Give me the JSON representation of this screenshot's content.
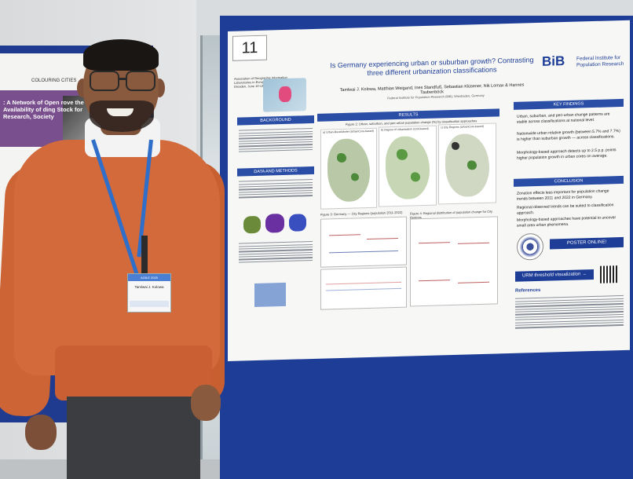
{
  "left_poster": {
    "logo_text": "COLOURING CITIES",
    "title_text": ": A Network of Open rove the Availability of ding Stock for Research, Society"
  },
  "poster": {
    "number": "11",
    "title": "Is Germany experiencing urban or suburban growth? Contrasting three different urbanization classifications",
    "authors": "Tamlwai J. Kolowa, Matthias Weigand, Ines Standfuß, Sebastian Klüsener, Nik Lomax & Hannes Taubenböck",
    "affiliation": "Federal Institute for Population Research (BiB), Wiesbaden, Germany",
    "conference": "Association of Geographic Information Laboratories in Europe (AGILE) Conference 2025, Dresden, June 10-13",
    "logo": {
      "mark": "BiB",
      "name": "Federal Institute for Population Research"
    },
    "sections": {
      "background": "BACKGROUND",
      "data_methods": "DATA AND METHODS",
      "results": "RESULTS",
      "key_findings": "KEY FINDINGS",
      "conclusion": "CONCLUSION",
      "references": "References"
    },
    "key_findings": [
      "Urban, suburban, and peri-urban change patterns are stable across classifications at national level.",
      "Nationwide urban relative growth (between 5.7% and 7.7%) is higher than suburban growth — across classifications.",
      "Morphology-based approach detects up to 2.5 p.p. points higher population growth in urban cores on average."
    ],
    "conclusion": [
      "Zonation effects less important for population change trends between 2011 and 2022 in Germany.",
      "Regional observed trends can be suited to classification approach.",
      "Morphology-based approaches have potential to uncover small area urban phenomena."
    ],
    "buttons": {
      "poster_online": "POSTER ONLINE!",
      "threshold": "URM threshold visualization →"
    },
    "figure_captions": {
      "fig2": "Figure 2: Urban, suburban, and peri-urban population change (%) by classification approaches",
      "fig3": "Figure 3: Germany — City Regions (population 2011-2022)",
      "fig4": "Figure 4: Regional distribution of population change for City Regions"
    },
    "map_labels": [
      "a) Urban-Rural/Model (UrbanCore-based)",
      "b) Degree of Urbanisation (Grid-based)",
      "c) City Regions (UrbanCore-based)"
    ]
  },
  "badge": {
    "header": "AGILE 2025",
    "name": "Tamlwai J. Kolowa"
  },
  "colors": {
    "board_blue": "#1e3d96",
    "sweater_orange": "#d36a3b",
    "lanyard_blue": "#2f6fc9"
  }
}
